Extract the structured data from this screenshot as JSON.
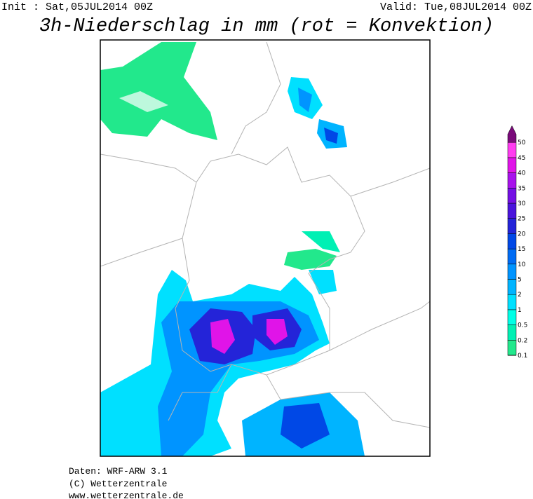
{
  "header": {
    "init": "Init : Sat,05JUL2014 00Z",
    "valid": "Valid: Tue,08JUL2014 00Z",
    "title": "3h-Niederschlag in mm (rot = Konvektion)"
  },
  "legend": {
    "levels": [
      {
        "value": 0.1,
        "color": "#22e88c"
      },
      {
        "value": 0.2,
        "color": "#00f0b4"
      },
      {
        "value": 0.5,
        "color": "#00ffe6"
      },
      {
        "value": 1,
        "color": "#00e0ff"
      },
      {
        "value": 2,
        "color": "#00b4ff"
      },
      {
        "value": 5,
        "color": "#0094ff"
      },
      {
        "value": 10,
        "color": "#006cf4"
      },
      {
        "value": 15,
        "color": "#0048e6"
      },
      {
        "value": 20,
        "color": "#2424d8"
      },
      {
        "value": 25,
        "color": "#4a14dc"
      },
      {
        "value": 30,
        "color": "#7410e4"
      },
      {
        "value": 35,
        "color": "#a812ec"
      },
      {
        "value": 40,
        "color": "#e014e8"
      },
      {
        "value": 45,
        "color": "#ff3cf0"
      },
      {
        "value": 50,
        "color": "#7a0a7a"
      }
    ]
  },
  "footer": {
    "source": "Daten: WRF-ARW 3.1",
    "copyright": "(C) Wetterzentrale",
    "url": "www.wetterzentrale.de"
  }
}
